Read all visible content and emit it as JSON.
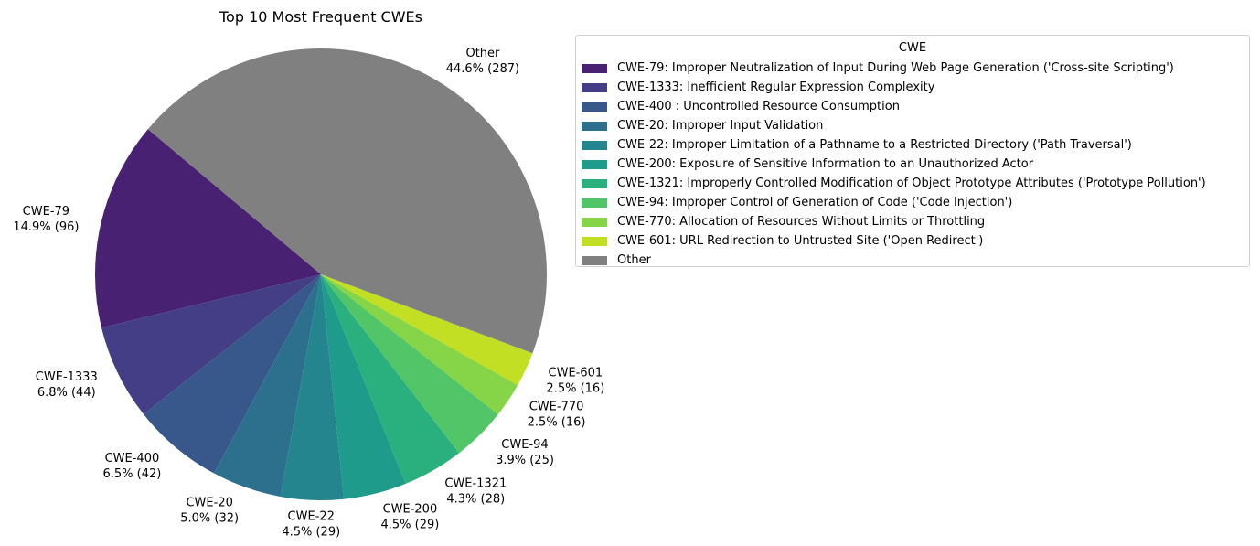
{
  "chart_data": {
    "type": "pie",
    "title": "Top 10 Most Frequent CWEs",
    "legend": {
      "title": "CWE",
      "placement": "right",
      "entries": [
        "CWE-79: Improper Neutralization of Input During Web Page Generation ('Cross-site Scripting')",
        "CWE-1333: Inefficient Regular Expression Complexity",
        "CWE-400 : Uncontrolled Resource Consumption",
        "CWE-20: Improper Input Validation",
        "CWE-22: Improper Limitation of a Pathname to a Restricted Directory ('Path Traversal')",
        "CWE-200: Exposure of Sensitive Information to an Unauthorized Actor",
        "CWE-1321: Improperly Controlled Modification of Object Prototype Attributes ('Prototype Pollution')",
        "CWE-94: Improper Control of Generation of Code ('Code Injection')",
        "CWE-770: Allocation of Resources Without Limits or Throttling",
        "CWE-601: URL Redirection to Untrusted Site ('Open Redirect')",
        "Other"
      ]
    },
    "slices": [
      {
        "label": "CWE-79",
        "value": 96,
        "pct_label": "14.9% (96)",
        "color": "#482173"
      },
      {
        "label": "CWE-1333",
        "value": 44,
        "pct_label": "6.8% (44)",
        "color": "#433e85"
      },
      {
        "label": "CWE-400",
        "value": 42,
        "pct_label": "6.5% (42)",
        "color": "#38588c"
      },
      {
        "label": "CWE-20",
        "value": 32,
        "pct_label": "5.0% (32)",
        "color": "#2d708e"
      },
      {
        "label": "CWE-22",
        "value": 29,
        "pct_label": "4.5% (29)",
        "color": "#25858e"
      },
      {
        "label": "CWE-200",
        "value": 29,
        "pct_label": "4.5% (29)",
        "color": "#1e9b8a"
      },
      {
        "label": "CWE-1321",
        "value": 28,
        "pct_label": "4.3% (28)",
        "color": "#2ab07f"
      },
      {
        "label": "CWE-94",
        "value": 25,
        "pct_label": "3.9% (25)",
        "color": "#52c569"
      },
      {
        "label": "CWE-770",
        "value": 16,
        "pct_label": "2.5% (16)",
        "color": "#86d549"
      },
      {
        "label": "CWE-601",
        "value": 16,
        "pct_label": "2.5% (16)",
        "color": "#c2df23"
      },
      {
        "label": "Other",
        "value": 287,
        "pct_label": "44.6% (287)",
        "color": "#808080"
      }
    ]
  }
}
